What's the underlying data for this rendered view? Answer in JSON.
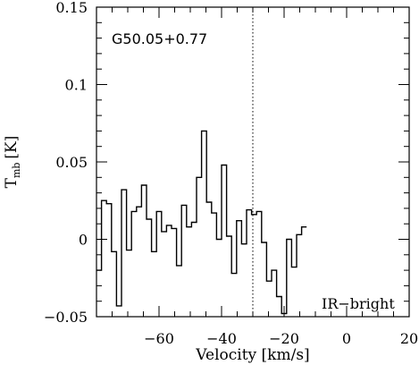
{
  "chart_data": {
    "type": "line",
    "title": "",
    "source_label": "G50.05+0.77",
    "region_label": "IR−bright",
    "xlabel": "Velocity [km/s]",
    "ylabel": "T",
    "ylabel_sub": "mb",
    "ylabel_unit": "[K]",
    "xlim": [
      -80,
      20
    ],
    "ylim": [
      -0.05,
      0.15
    ],
    "x_ticks": [
      -60,
      -40,
      -20,
      0,
      20
    ],
    "x_tick_labels": [
      "−60",
      "−40",
      "−20",
      "0",
      "20"
    ],
    "y_ticks": [
      -0.05,
      0,
      0.05,
      0.1,
      0.15
    ],
    "y_tick_labels": [
      "−0.05",
      "0",
      "0.05",
      "0.1",
      "0.15"
    ],
    "reference_velocity": -30,
    "step_start": -80,
    "step_width": 1.6,
    "series": [
      {
        "style": "steps",
        "values": [
          -0.02,
          0.025,
          0.023,
          -0.008,
          -0.043,
          0.032,
          -0.007,
          0.018,
          0.021,
          0.035,
          0.013,
          -0.008,
          0.018,
          0.005,
          0.009,
          0.007,
          -0.017,
          0.022,
          0.008,
          0.011,
          0.04,
          0.07,
          0.024,
          0.017,
          0.0,
          0.048,
          0.002,
          -0.022,
          0.012,
          -0.003,
          0.019,
          0.016,
          0.018,
          -0.002,
          -0.027,
          -0.02,
          -0.037,
          -0.048,
          0.0,
          -0.018,
          0.003,
          0.008
        ]
      }
    ]
  }
}
